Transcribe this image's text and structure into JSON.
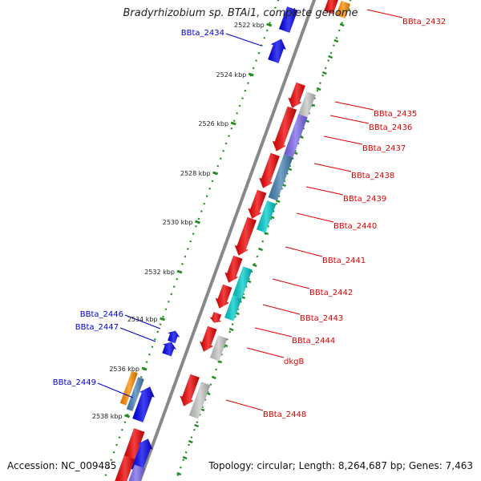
{
  "title": "Bradyrhizobium sp. BTAi1, complete genome",
  "footer": {
    "accession": "Accession: NC_009485",
    "topology": "Topology: circular; Length: 8,264,687 bp; Genes: 7,463"
  },
  "colors": {
    "forward_label": "#dd0000",
    "reverse_label": "#0000cc",
    "red_gene": "#ee0000",
    "blue_gene": "#0000ee",
    "gray_gene": "#c8c8c8",
    "purple_gene": "#7b68ee",
    "steelblue_gene": "#4682b4",
    "cyan_gene": "#00cccc",
    "orange_gene": "#ff8c00",
    "backbone": "#888888",
    "tick_marks": "#228b22"
  },
  "scale_ticks": [
    {
      "label": "2522 kbp"
    },
    {
      "label": "2524 kbp"
    },
    {
      "label": "2526 kbp"
    },
    {
      "label": "2528 kbp"
    },
    {
      "label": "2530 kbp"
    },
    {
      "label": "2532 kbp"
    },
    {
      "label": "2534 kbp"
    },
    {
      "label": "2536 kbp"
    },
    {
      "label": "2538 kbp"
    }
  ],
  "forward_labels": [
    {
      "name": "BBta_2432"
    },
    {
      "name": "BBta_2435"
    },
    {
      "name": "BBta_2436"
    },
    {
      "name": "BBta_2437"
    },
    {
      "name": "BBta_2438"
    },
    {
      "name": "BBta_2439"
    },
    {
      "name": "BBta_2440"
    },
    {
      "name": "BBta_2441"
    },
    {
      "name": "BBta_2442"
    },
    {
      "name": "BBta_2443"
    },
    {
      "name": "BBta_2444"
    },
    {
      "name": "dkgB"
    },
    {
      "name": "BBta_2448"
    }
  ],
  "reverse_labels": [
    {
      "name": "BBta_2434"
    },
    {
      "name": "BBta_2446"
    },
    {
      "name": "BBta_2447"
    },
    {
      "name": "BBta_2449"
    }
  ]
}
